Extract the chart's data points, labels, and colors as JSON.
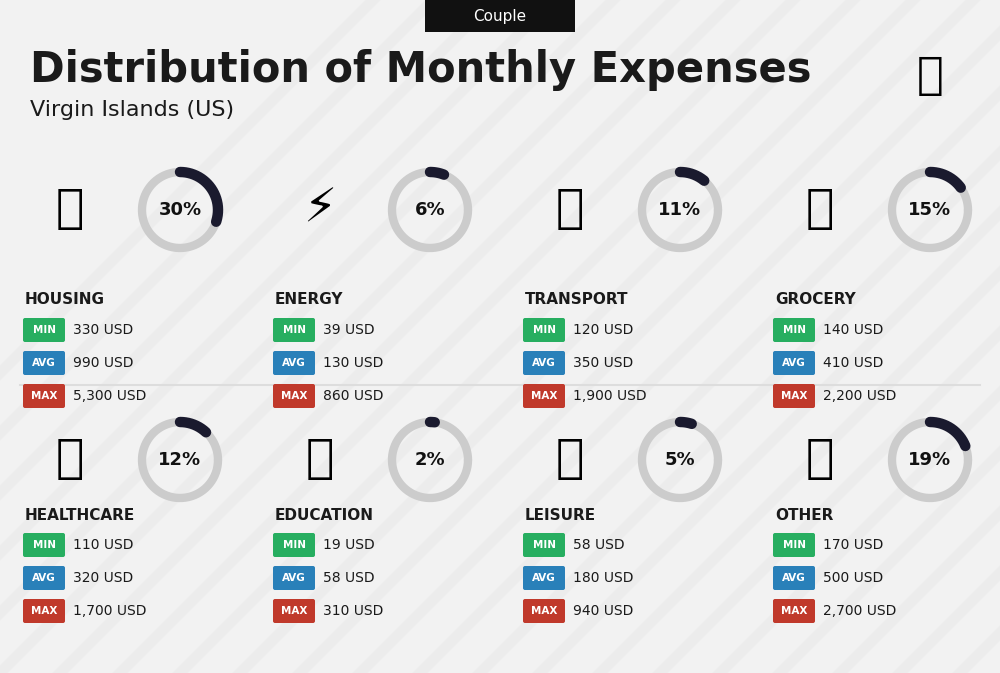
{
  "title": "Distribution of Monthly Expenses",
  "subtitle": "Virgin Islands (US)",
  "badge": "Couple",
  "bg_color": "#f2f2f2",
  "categories": [
    {
      "name": "HOUSING",
      "pct": 30,
      "min": "330 USD",
      "avg": "990 USD",
      "max": "5,300 USD",
      "col": 0,
      "row": 0
    },
    {
      "name": "ENERGY",
      "pct": 6,
      "min": "39 USD",
      "avg": "130 USD",
      "max": "860 USD",
      "col": 1,
      "row": 0
    },
    {
      "name": "TRANSPORT",
      "pct": 11,
      "min": "120 USD",
      "avg": "350 USD",
      "max": "1,900 USD",
      "col": 2,
      "row": 0
    },
    {
      "name": "GROCERY",
      "pct": 15,
      "min": "140 USD",
      "avg": "410 USD",
      "max": "2,200 USD",
      "col": 3,
      "row": 0
    },
    {
      "name": "HEALTHCARE",
      "pct": 12,
      "min": "110 USD",
      "avg": "320 USD",
      "max": "1,700 USD",
      "col": 0,
      "row": 1
    },
    {
      "name": "EDUCATION",
      "pct": 2,
      "min": "19 USD",
      "avg": "58 USD",
      "max": "310 USD",
      "col": 1,
      "row": 1
    },
    {
      "name": "LEISURE",
      "pct": 5,
      "min": "58 USD",
      "avg": "180 USD",
      "max": "940 USD",
      "col": 2,
      "row": 1
    },
    {
      "name": "OTHER",
      "pct": 19,
      "min": "170 USD",
      "avg": "500 USD",
      "max": "2,700 USD",
      "col": 3,
      "row": 1
    }
  ],
  "min_color": "#27ae60",
  "avg_color": "#2980b9",
  "max_color": "#c0392b",
  "text_color": "#1a1a1a",
  "badge_bg": "#111111",
  "badge_text": "#ffffff",
  "circle_bg_color": "#cccccc",
  "circle_arc_color": "#1a1a2e",
  "pct_color": "#111111",
  "divider_color": "#dddddd",
  "fig_width": 10.0,
  "fig_height": 6.73,
  "dpi": 100
}
